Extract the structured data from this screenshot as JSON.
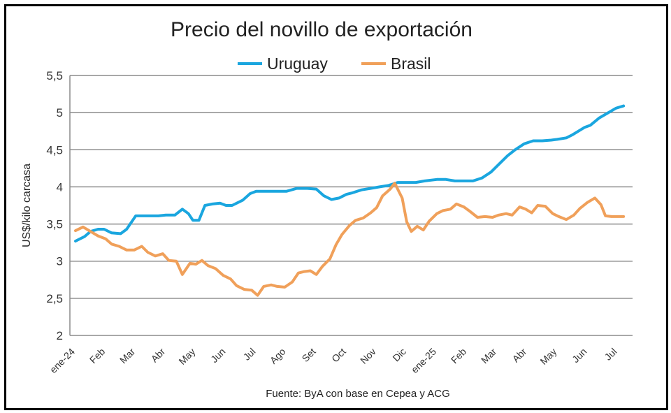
{
  "chart_data": {
    "type": "line",
    "title": "Precio del novillo de exportación",
    "ylabel": "US$/kilo carcasa",
    "xlabel": "",
    "source": "Fuente: ByA con base en Cepea y ACG",
    "ylim": [
      2,
      5.5
    ],
    "yticks": [
      2,
      2.5,
      3,
      3.5,
      4,
      4.5,
      5,
      5.5
    ],
    "ytick_labels": [
      "2",
      "2,5",
      "3",
      "3,5",
      "4",
      "4,5",
      "5",
      "5,5"
    ],
    "grid": true,
    "legend": "top",
    "x_tick_labels": [
      "ene-24",
      "Feb",
      "Mar",
      "Abr",
      "May",
      "Jun",
      "Jul",
      "Ago",
      "Set",
      "Oct",
      "Nov",
      "Dic",
      "ene-25",
      "Feb",
      "Mar",
      "Abr",
      "May",
      "Jun",
      "Jul"
    ],
    "x_tick_positions": [
      0,
      1,
      2,
      3,
      4,
      5,
      6,
      7,
      8,
      9,
      10,
      11,
      12,
      13,
      14,
      15,
      16,
      17,
      18
    ],
    "x_range": [
      0,
      18.5
    ],
    "series": [
      {
        "name": "Uruguay",
        "color": "#1AA6DF",
        "x": [
          0,
          0.3,
          0.5,
          0.75,
          0.95,
          1.2,
          1.5,
          1.7,
          2,
          2.25,
          2.5,
          2.75,
          3,
          3.3,
          3.55,
          3.75,
          3.9,
          4.1,
          4.3,
          4.55,
          4.8,
          5.0,
          5.2,
          5.55,
          5.8,
          6.0,
          6.25,
          6.5,
          6.75,
          7,
          7.35,
          7.7,
          8.0,
          8.25,
          8.5,
          8.75,
          9.0,
          9.2,
          9.5,
          9.8,
          10.1,
          10.4,
          10.7,
          11,
          11.3,
          11.6,
          12,
          12.3,
          12.6,
          12.8,
          13.2,
          13.5,
          13.8,
          14.1,
          14.35,
          14.6,
          14.9,
          15.2,
          15.5,
          15.8,
          16.0,
          16.3,
          16.5,
          16.7,
          16.9,
          17.1,
          17.4,
          17.7,
          17.95,
          18.2
        ],
        "y": [
          3.27,
          3.33,
          3.4,
          3.43,
          3.43,
          3.38,
          3.37,
          3.43,
          3.61,
          3.61,
          3.61,
          3.61,
          3.62,
          3.62,
          3.7,
          3.64,
          3.55,
          3.55,
          3.75,
          3.77,
          3.78,
          3.75,
          3.75,
          3.82,
          3.91,
          3.94,
          3.94,
          3.94,
          3.94,
          3.94,
          3.98,
          3.98,
          3.97,
          3.88,
          3.83,
          3.85,
          3.9,
          3.92,
          3.96,
          3.98,
          4.0,
          4.02,
          4.06,
          4.06,
          4.06,
          4.08,
          4.1,
          4.1,
          4.08,
          4.08,
          4.08,
          4.12,
          4.2,
          4.32,
          4.42,
          4.5,
          4.58,
          4.62,
          4.62,
          4.63,
          4.64,
          4.66,
          4.7,
          4.75,
          4.8,
          4.83,
          4.93,
          5.0,
          5.06,
          5.09
        ]
      },
      {
        "name": "Brasil",
        "color": "#F0A05A",
        "x": [
          0,
          0.25,
          0.5,
          0.75,
          1.0,
          1.2,
          1.45,
          1.7,
          1.95,
          2.2,
          2.4,
          2.65,
          2.9,
          3.1,
          3.35,
          3.55,
          3.8,
          4.0,
          4.2,
          4.4,
          4.65,
          4.9,
          5.15,
          5.35,
          5.6,
          5.85,
          6.05,
          6.25,
          6.5,
          6.7,
          6.95,
          7.2,
          7.4,
          7.6,
          7.8,
          8.0,
          8.2,
          8.45,
          8.65,
          8.85,
          9.1,
          9.3,
          9.55,
          9.8,
          10.0,
          10.2,
          10.45,
          10.6,
          10.85,
          11.0,
          11.15,
          11.35,
          11.55,
          11.75,
          12.0,
          12.2,
          12.45,
          12.65,
          12.9,
          13.1,
          13.35,
          13.6,
          13.85,
          14.05,
          14.3,
          14.5,
          14.75,
          14.95,
          15.15,
          15.35,
          15.6,
          15.85,
          16.05,
          16.3,
          16.55,
          16.75,
          17.0,
          17.25,
          17.45,
          17.6,
          17.8,
          18.0,
          18.2
        ],
        "y": [
          3.41,
          3.46,
          3.4,
          3.34,
          3.3,
          3.23,
          3.2,
          3.15,
          3.15,
          3.2,
          3.12,
          3.07,
          3.1,
          3.01,
          3.0,
          2.82,
          2.97,
          2.96,
          3.01,
          2.94,
          2.9,
          2.81,
          2.76,
          2.67,
          2.62,
          2.61,
          2.54,
          2.66,
          2.68,
          2.66,
          2.65,
          2.72,
          2.84,
          2.86,
          2.87,
          2.82,
          2.93,
          3.03,
          3.22,
          3.36,
          3.48,
          3.55,
          3.58,
          3.65,
          3.72,
          3.88,
          3.97,
          4.05,
          3.85,
          3.53,
          3.4,
          3.47,
          3.42,
          3.54,
          3.64,
          3.68,
          3.7,
          3.77,
          3.73,
          3.67,
          3.59,
          3.6,
          3.59,
          3.62,
          3.64,
          3.62,
          3.73,
          3.7,
          3.65,
          3.75,
          3.74,
          3.64,
          3.6,
          3.56,
          3.62,
          3.71,
          3.79,
          3.85,
          3.76,
          3.61,
          3.6,
          3.6,
          3.6
        ]
      }
    ]
  }
}
